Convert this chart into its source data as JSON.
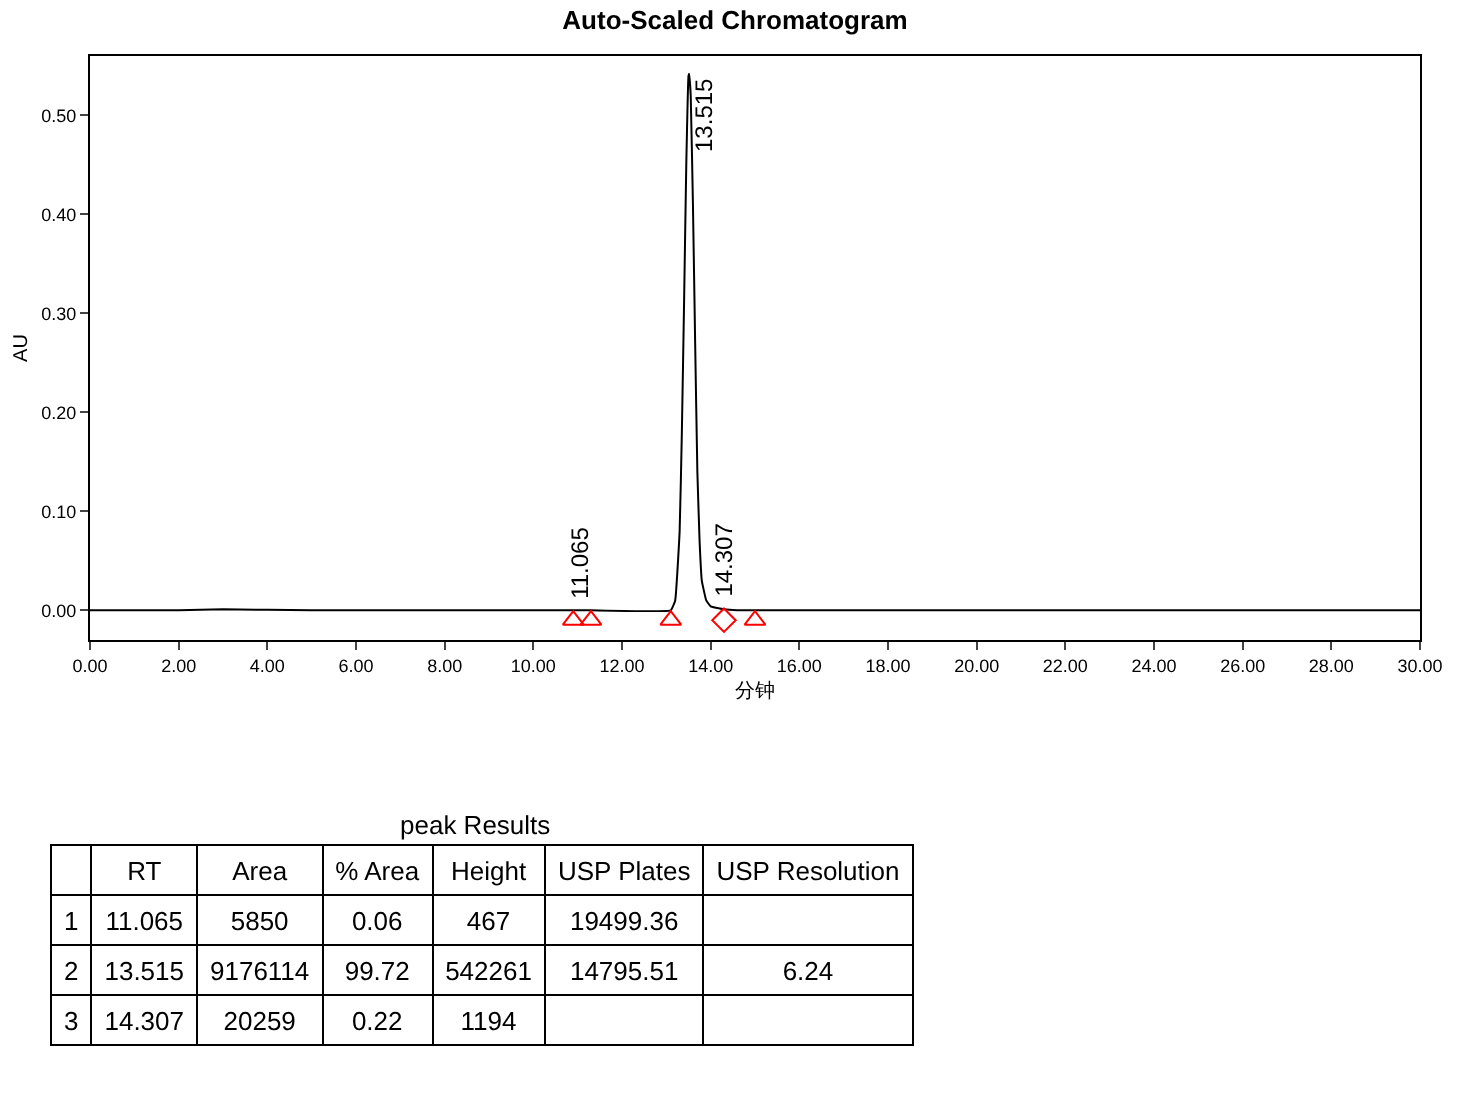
{
  "chart_data": [
    {
      "type": "line",
      "title": "Auto-Scaled Chromatogram",
      "xlabel": "分钟",
      "ylabel": "AU",
      "xlim": [
        0,
        30
      ],
      "xticks": [
        {
          "value": 0,
          "label": "0.00"
        },
        {
          "value": 2,
          "label": "2.00"
        },
        {
          "value": 4,
          "label": "4.00"
        },
        {
          "value": 6,
          "label": "6.00"
        },
        {
          "value": 8,
          "label": "8.00"
        },
        {
          "value": 10,
          "label": "10.00"
        },
        {
          "value": 12,
          "label": "12.00"
        },
        {
          "value": 14,
          "label": "14.00"
        },
        {
          "value": 16,
          "label": "16.00"
        },
        {
          "value": 18,
          "label": "18.00"
        },
        {
          "value": 20,
          "label": "20.00"
        },
        {
          "value": 22,
          "label": "22.00"
        },
        {
          "value": 24,
          "label": "24.00"
        },
        {
          "value": 26,
          "label": "26.00"
        },
        {
          "value": 28,
          "label": "28.00"
        },
        {
          "value": 30,
          "label": "30.00"
        }
      ],
      "ylim": [
        -0.03,
        0.56
      ],
      "yticks": [
        {
          "value": 0,
          "label": "0.00"
        },
        {
          "value": 0.1,
          "label": "0.10"
        },
        {
          "value": 0.2,
          "label": "0.20"
        },
        {
          "value": 0.3,
          "label": "0.30"
        },
        {
          "value": 0.4,
          "label": "0.40"
        },
        {
          "value": 0.5,
          "label": "0.50"
        }
      ],
      "grid": false,
      "series": [
        {
          "type": "line",
          "color": "#000000",
          "marker": "none",
          "x": [
            0,
            2,
            3,
            5,
            10,
            10.9,
            11.065,
            11.3,
            13.1,
            13.2,
            13.3,
            13.35,
            13.4,
            13.45,
            13.5,
            13.515,
            13.55,
            13.6,
            13.65,
            13.7,
            13.75,
            13.8,
            13.9,
            14.0,
            14.307,
            14.6,
            15,
            20,
            30
          ],
          "values": [
            0,
            0,
            0.001,
            0,
            0,
            0,
            0,
            0,
            0,
            0.01,
            0.08,
            0.18,
            0.31,
            0.45,
            0.54,
            0.542,
            0.52,
            0.41,
            0.27,
            0.14,
            0.07,
            0.03,
            0.01,
            0.004,
            0.001,
            0,
            0,
            0,
            0
          ]
        },
        {
          "type": "scatter",
          "color": "#ff0000",
          "marker": "triangle",
          "x": [
            10.9,
            11.3,
            13.1,
            15.0
          ],
          "values": [
            -0.01,
            -0.01,
            -0.01,
            -0.01
          ]
        },
        {
          "type": "scatter",
          "color": "#ff0000",
          "marker": "diamond",
          "x": [
            14.3
          ],
          "values": [
            -0.01
          ]
        }
      ],
      "annotations": [
        {
          "text": "11.065",
          "x": 11.065,
          "y": 0
        },
        {
          "text": "13.515",
          "x": 13.515,
          "y": 0.542
        },
        {
          "text": "14.307",
          "x": 14.307,
          "y": 0.001
        }
      ]
    },
    {
      "type": "other",
      "title": "peak Results",
      "categories": [
        null,
        "RT",
        "Area",
        "% Area",
        "Height",
        "USP Plates",
        "USP Resolution"
      ],
      "cell_labels": [
        [
          "1",
          "11.065",
          "5850",
          "0.06",
          "467",
          "19499.36",
          null
        ],
        [
          "2",
          "13.515",
          "9176114",
          "99.72",
          "542261",
          "14795.51",
          "6.24"
        ],
        [
          "3",
          "14.307",
          "20259",
          "0.22",
          "1194",
          null,
          null
        ]
      ]
    }
  ]
}
